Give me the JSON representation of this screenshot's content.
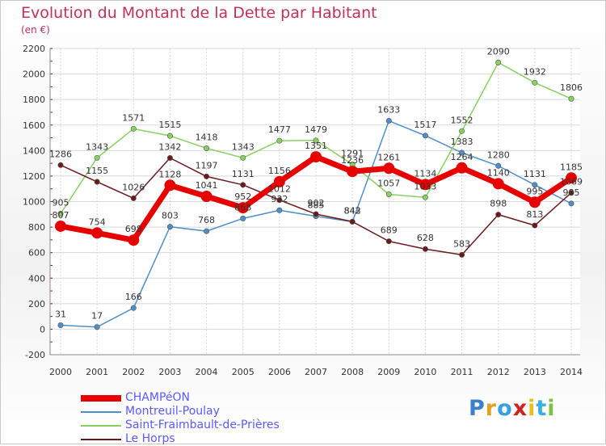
{
  "title": "Evolution du Montant de la Dette par Habitant",
  "subtitle": "(en €)",
  "brand": {
    "letters": [
      "P",
      "r",
      "o",
      "x",
      "i",
      "t",
      "i"
    ],
    "colors": [
      "#3a7fd0",
      "#e8a020",
      "#3a9fe0",
      "#d02020",
      "#e8c020",
      "#3ab0e0",
      "#80c040"
    ]
  },
  "chart_data": {
    "type": "line",
    "x": [
      "2000",
      "2001",
      "2002",
      "2003",
      "2004",
      "2005",
      "2006",
      "2007",
      "2008",
      "2009",
      "2010",
      "2011",
      "2012",
      "2013",
      "2014"
    ],
    "ylim": [
      -200,
      2200
    ],
    "yticks": [
      "-200",
      "0",
      "200",
      "400",
      "600",
      "800",
      "1000",
      "1200",
      "1400",
      "1600",
      "1800",
      "2000",
      "2200"
    ],
    "grid": true,
    "legend_position": "bottom",
    "series": [
      {
        "name": "CHAMPéON",
        "color": "#e60000",
        "values": [
          807,
          754,
          698,
          1128,
          1041,
          952,
          1156,
          1351,
          1236,
          1261,
          1134,
          1264,
          1140,
          995,
          1185
        ],
        "labels": [
          "807",
          "754",
          "698",
          "1128",
          "1041",
          "952",
          "1156",
          "1351",
          "1236",
          "1261",
          "1134",
          "1264",
          "1140",
          "995",
          "1185"
        ]
      },
      {
        "name": "Montreuil-Poulay",
        "color": "#4f8fc8",
        "values": [
          31,
          17,
          166,
          803,
          768,
          868,
          932,
          885,
          842,
          1633,
          1517,
          1383,
          1280,
          1131,
          985
        ],
        "labels": [
          "31",
          "17",
          "166",
          "803",
          "768",
          "868",
          "932",
          "885",
          "842",
          "1633",
          "1517",
          "1383",
          "1280",
          "1131",
          "985"
        ]
      },
      {
        "name": "Saint-Fraimbault-de-Prières",
        "color": "#88d060",
        "values": [
          905,
          1343,
          1571,
          1515,
          1418,
          1343,
          1477,
          1479,
          1291,
          1057,
          1033,
          1552,
          2090,
          1932,
          1806
        ],
        "labels": [
          "905",
          "1343",
          "1571",
          "1515",
          "1418",
          "1343",
          "1477",
          "1479",
          "1291",
          "1057",
          "1033",
          "1552",
          "2090",
          "1932",
          "1806"
        ]
      },
      {
        "name": "Le Horps",
        "color": "#6a1a1a",
        "values": [
          1286,
          1155,
          1026,
          1342,
          1197,
          1131,
          1012,
          902,
          843,
          689,
          628,
          583,
          898,
          813,
          1069
        ],
        "labels": [
          "1286",
          "1155",
          "1026",
          "1342",
          "1197",
          "1131",
          "1012",
          "902",
          "843",
          "689",
          "628",
          "583",
          "898",
          "813",
          "1069"
        ]
      }
    ]
  }
}
